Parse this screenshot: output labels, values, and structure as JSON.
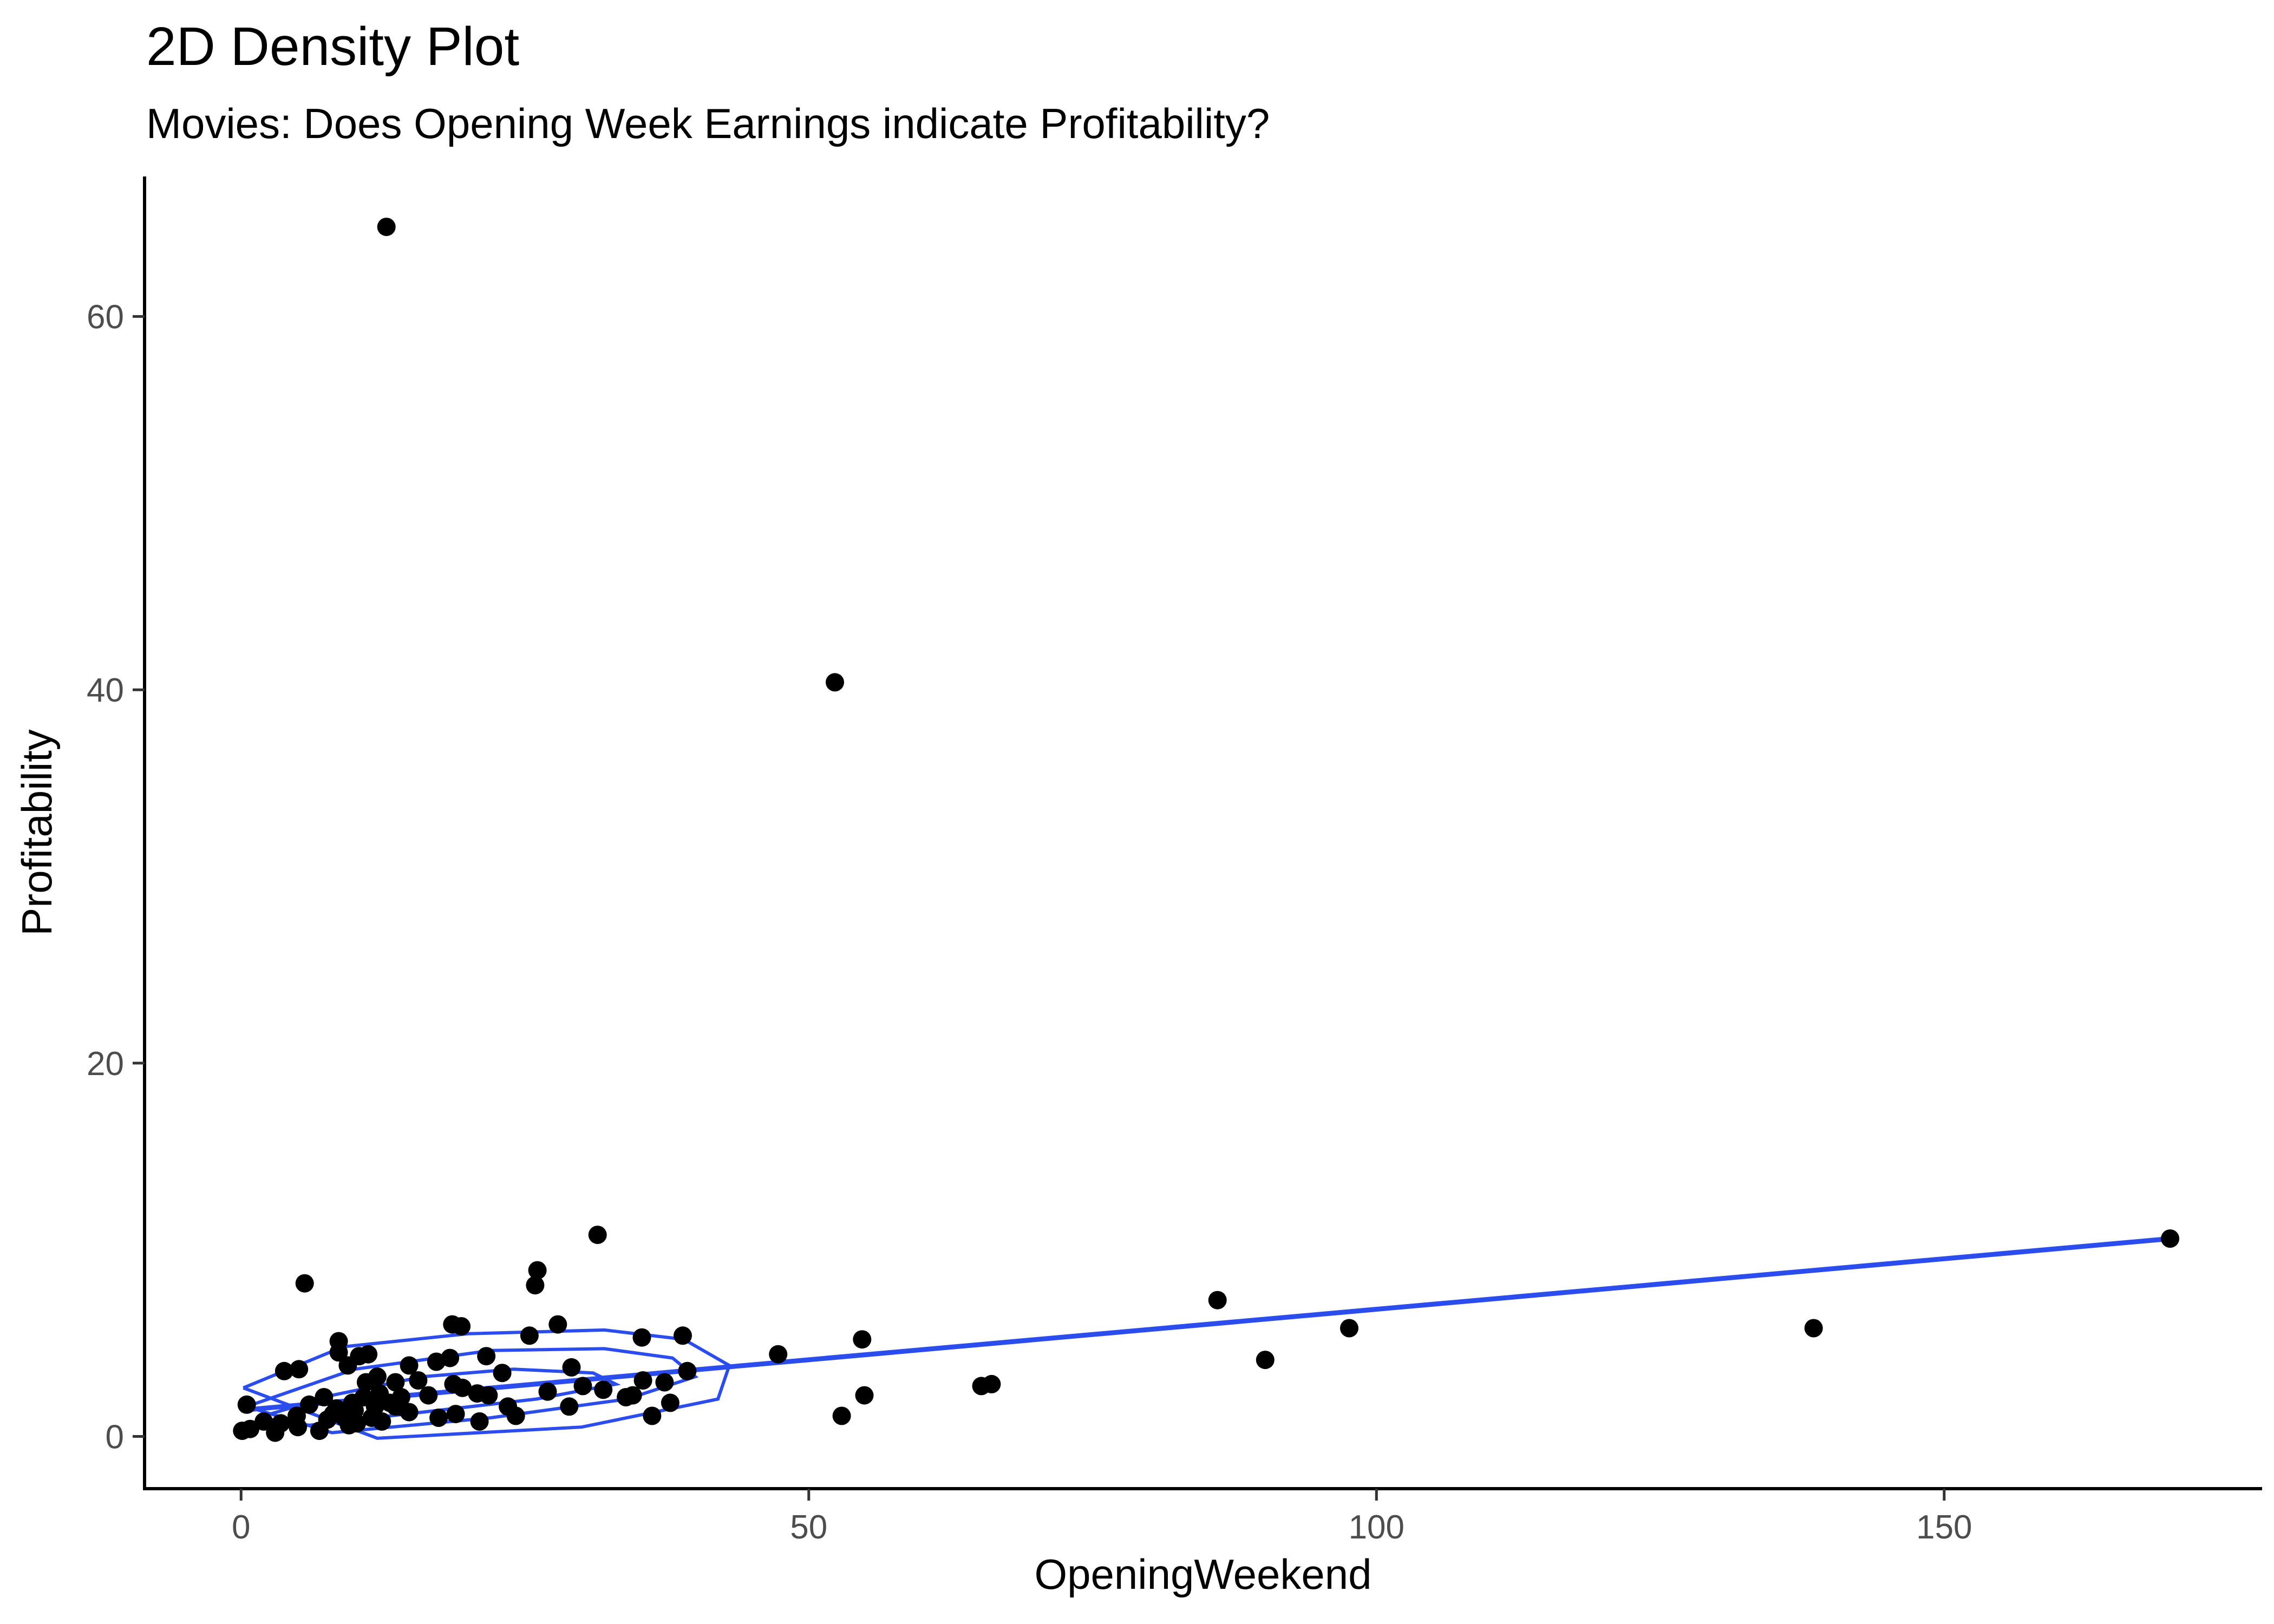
{
  "chart_data": {
    "type": "scatter",
    "title": "2D Density Plot",
    "subtitle": "Movies: Does Opening Week Earnings indicate Profitability?",
    "xlabel": "OpeningWeekend",
    "ylabel": "Profitability",
    "xlim": [
      -8.5,
      178
    ],
    "ylim": [
      -2.8,
      67.5
    ],
    "x_ticks": [
      0,
      50,
      100,
      150
    ],
    "y_ticks": [
      0,
      20,
      40,
      60
    ],
    "grid": false,
    "colors": {
      "points": "#000000",
      "smooth": "#2b4ded",
      "density": "#2b4ded"
    },
    "points": [
      [
        12.8,
        64.8
      ],
      [
        52.3,
        40.4
      ],
      [
        31.4,
        10.8
      ],
      [
        169.9,
        10.6
      ],
      [
        26.1,
        8.9
      ],
      [
        25.9,
        8.1
      ],
      [
        5.6,
        8.2
      ],
      [
        86.0,
        7.3
      ],
      [
        138.5,
        5.8
      ],
      [
        97.6,
        5.8
      ],
      [
        27.9,
        6.0
      ],
      [
        18.6,
        6.0
      ],
      [
        19.4,
        5.9
      ],
      [
        38.9,
        5.4
      ],
      [
        25.4,
        5.4
      ],
      [
        35.3,
        5.3
      ],
      [
        54.7,
        5.2
      ],
      [
        8.6,
        5.1
      ],
      [
        47.3,
        4.4
      ],
      [
        90.2,
        4.1
      ],
      [
        8.6,
        4.5
      ],
      [
        10.4,
        4.3
      ],
      [
        11.2,
        4.4
      ],
      [
        21.6,
        4.3
      ],
      [
        14.8,
        3.8
      ],
      [
        3.8,
        3.5
      ],
      [
        5.1,
        3.6
      ],
      [
        9.4,
        3.8
      ],
      [
        17.2,
        4.0
      ],
      [
        18.4,
        4.2
      ],
      [
        29.1,
        3.7
      ],
      [
        39.3,
        3.5
      ],
      [
        23.0,
        3.4
      ],
      [
        12.0,
        3.2
      ],
      [
        15.6,
        3.0
      ],
      [
        11.0,
        2.9
      ],
      [
        13.6,
        2.9
      ],
      [
        18.7,
        2.8
      ],
      [
        19.5,
        2.6
      ],
      [
        21.8,
        2.2
      ],
      [
        35.4,
        3.0
      ],
      [
        37.3,
        2.9
      ],
      [
        30.1,
        2.7
      ],
      [
        31.9,
        2.5
      ],
      [
        33.9,
        2.1
      ],
      [
        34.5,
        2.2
      ],
      [
        65.2,
        2.7
      ],
      [
        66.1,
        2.8
      ],
      [
        54.9,
        2.2
      ],
      [
        27.0,
        2.4
      ],
      [
        20.8,
        2.3
      ],
      [
        16.5,
        2.2
      ],
      [
        14.1,
        2.1
      ],
      [
        12.2,
        2.3
      ],
      [
        10.8,
        2.1
      ],
      [
        9.8,
        1.8
      ],
      [
        8.4,
        1.5
      ],
      [
        7.3,
        2.1
      ],
      [
        6.0,
        1.7
      ],
      [
        4.9,
        1.1
      ],
      [
        0.5,
        1.7
      ],
      [
        2.0,
        0.8
      ],
      [
        0.1,
        0.3
      ],
      [
        0.8,
        0.4
      ],
      [
        3.0,
        0.2
      ],
      [
        3.5,
        0.7
      ],
      [
        5.0,
        0.5
      ],
      [
        6.9,
        0.3
      ],
      [
        7.6,
        0.9
      ],
      [
        8.1,
        1.2
      ],
      [
        9.5,
        0.6
      ],
      [
        10.2,
        0.7
      ],
      [
        10.0,
        1.4
      ],
      [
        11.5,
        1.0
      ],
      [
        12.4,
        0.8
      ],
      [
        11.8,
        1.6
      ],
      [
        13.1,
        1.8
      ],
      [
        14.0,
        1.6
      ],
      [
        14.8,
        1.3
      ],
      [
        17.4,
        1.0
      ],
      [
        18.9,
        1.2
      ],
      [
        21.0,
        0.8
      ],
      [
        23.5,
        1.6
      ],
      [
        24.2,
        1.1
      ],
      [
        28.9,
        1.6
      ],
      [
        36.2,
        1.1
      ],
      [
        37.8,
        1.8
      ],
      [
        52.9,
        1.1
      ],
      [
        9.1,
        1.0
      ],
      [
        13.6,
        1.6
      ]
    ],
    "smooth_line": {
      "x": [
        0,
        170
      ],
      "y": [
        1.4,
        10.6
      ]
    },
    "density_contours": [
      [
        [
          1.5,
          1.0
        ],
        [
          8,
          2.2
        ],
        [
          16,
          3.2
        ],
        [
          24,
          3.6
        ],
        [
          31,
          3.4
        ],
        [
          33,
          2.8
        ],
        [
          26,
          2.0
        ],
        [
          16,
          1.3
        ],
        [
          6,
          0.6
        ],
        [
          1.5,
          1.0
        ]
      ],
      [
        [
          0.5,
          1.6
        ],
        [
          10,
          3.6
        ],
        [
          22,
          4.6
        ],
        [
          32,
          4.7
        ],
        [
          38,
          4.2
        ],
        [
          40,
          3.2
        ],
        [
          34,
          2.0
        ],
        [
          22,
          1.0
        ],
        [
          8,
          0.2
        ],
        [
          0.5,
          1.6
        ]
      ],
      [
        [
          0.2,
          2.6
        ],
        [
          9,
          4.8
        ],
        [
          20,
          5.5
        ],
        [
          32,
          5.7
        ],
        [
          39,
          5.2
        ],
        [
          43,
          3.8
        ],
        [
          42,
          2.0
        ],
        [
          30,
          0.5
        ],
        [
          12,
          -0.1
        ],
        [
          0.2,
          2.6
        ]
      ]
    ]
  }
}
